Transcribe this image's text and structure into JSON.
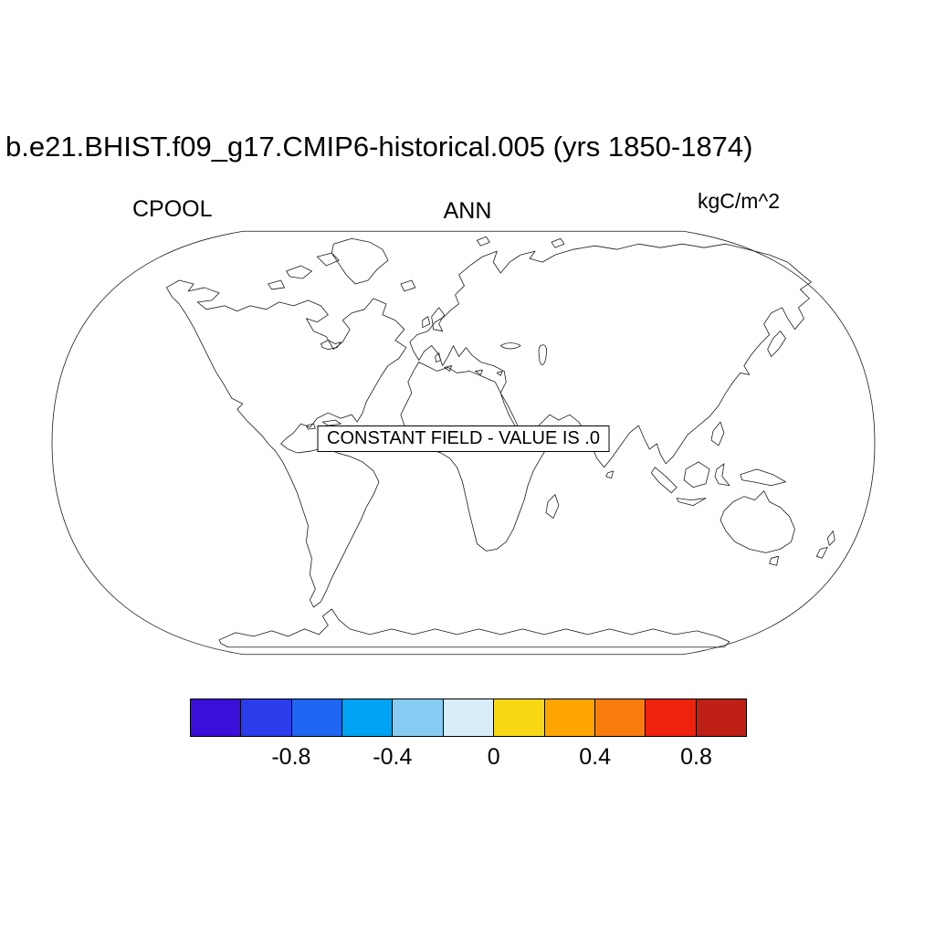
{
  "title": "b.e21.BHIST.f09_g17.CMIP6-historical.005 (yrs 1850-1874)",
  "labels": {
    "variable": "CPOOL",
    "season": "ANN",
    "units": "kgC/m^2"
  },
  "map": {
    "annotation": "CONSTANT FIELD - VALUE IS .0"
  },
  "colorbar": {
    "colors": [
      "#3A0FD9",
      "#2B3CEB",
      "#1F66F2",
      "#00A2F3",
      "#86CCF2",
      "#D8ECF9",
      "#F8D714",
      "#FFA400",
      "#F97D0C",
      "#EE220D",
      "#BF2015"
    ],
    "tick_labels": [
      "-0.8",
      "-0.4",
      "0",
      "0.4",
      "0.8"
    ]
  },
  "chart_data": {
    "type": "heatmap",
    "projection": "Robinson",
    "title": "b.e21.BHIST.f09_g17.CMIP6-historical.005 (yrs 1850-1874)",
    "variable": "CPOOL",
    "temporal_average": "ANN",
    "units": "kgC/m^2",
    "field_description": "CONSTANT FIELD - VALUE IS .0",
    "constant_value": 0,
    "colorbar": {
      "orientation": "horizontal",
      "n_colors": 11,
      "colors": [
        "#3A0FD9",
        "#2B3CEB",
        "#1F66F2",
        "#00A2F3",
        "#86CCF2",
        "#D8ECF9",
        "#F8D714",
        "#FFA400",
        "#F97D0C",
        "#EE220D",
        "#BF2015"
      ],
      "tick_labels": [
        "-0.8",
        "-0.4",
        "0",
        "0.4",
        "0.8"
      ],
      "tick_values": [
        -0.8,
        -0.4,
        0,
        0.4,
        0.8
      ]
    }
  }
}
